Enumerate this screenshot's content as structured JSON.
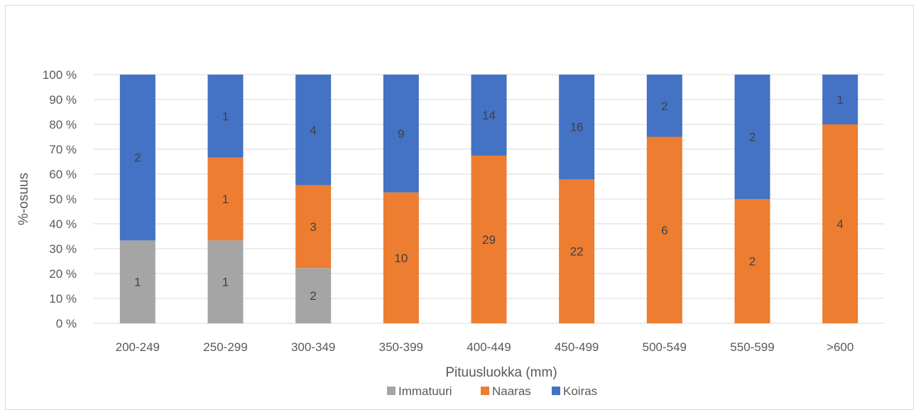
{
  "chart_data": {
    "type": "bar",
    "stacked": "percent",
    "categories": [
      "200-249",
      "250-299",
      "300-349",
      "350-399",
      "400-449",
      "450-499",
      "500-549",
      "550-599",
      ">600"
    ],
    "series": [
      {
        "name": "Immatuuri",
        "color": "#a5a5a5",
        "values": [
          1,
          1,
          2,
          0,
          0,
          0,
          0,
          0,
          0
        ]
      },
      {
        "name": "Naaras",
        "color": "#ed7d31",
        "values": [
          0,
          1,
          3,
          10,
          29,
          22,
          6,
          2,
          4
        ]
      },
      {
        "name": "Koiras",
        "color": "#4472c4",
        "values": [
          2,
          1,
          4,
          9,
          14,
          16,
          2,
          2,
          1
        ]
      }
    ],
    "yticks": [
      "0 %",
      "10 %",
      "20 %",
      "30 %",
      "40 %",
      "50 %",
      "60 %",
      "70 %",
      "80 %",
      "90 %",
      "100 %"
    ],
    "ylim": [
      0,
      100
    ],
    "xlabel": "Pituusluokka (mm)",
    "ylabel": "%-osuus",
    "grid": true,
    "legend": "bottom"
  }
}
